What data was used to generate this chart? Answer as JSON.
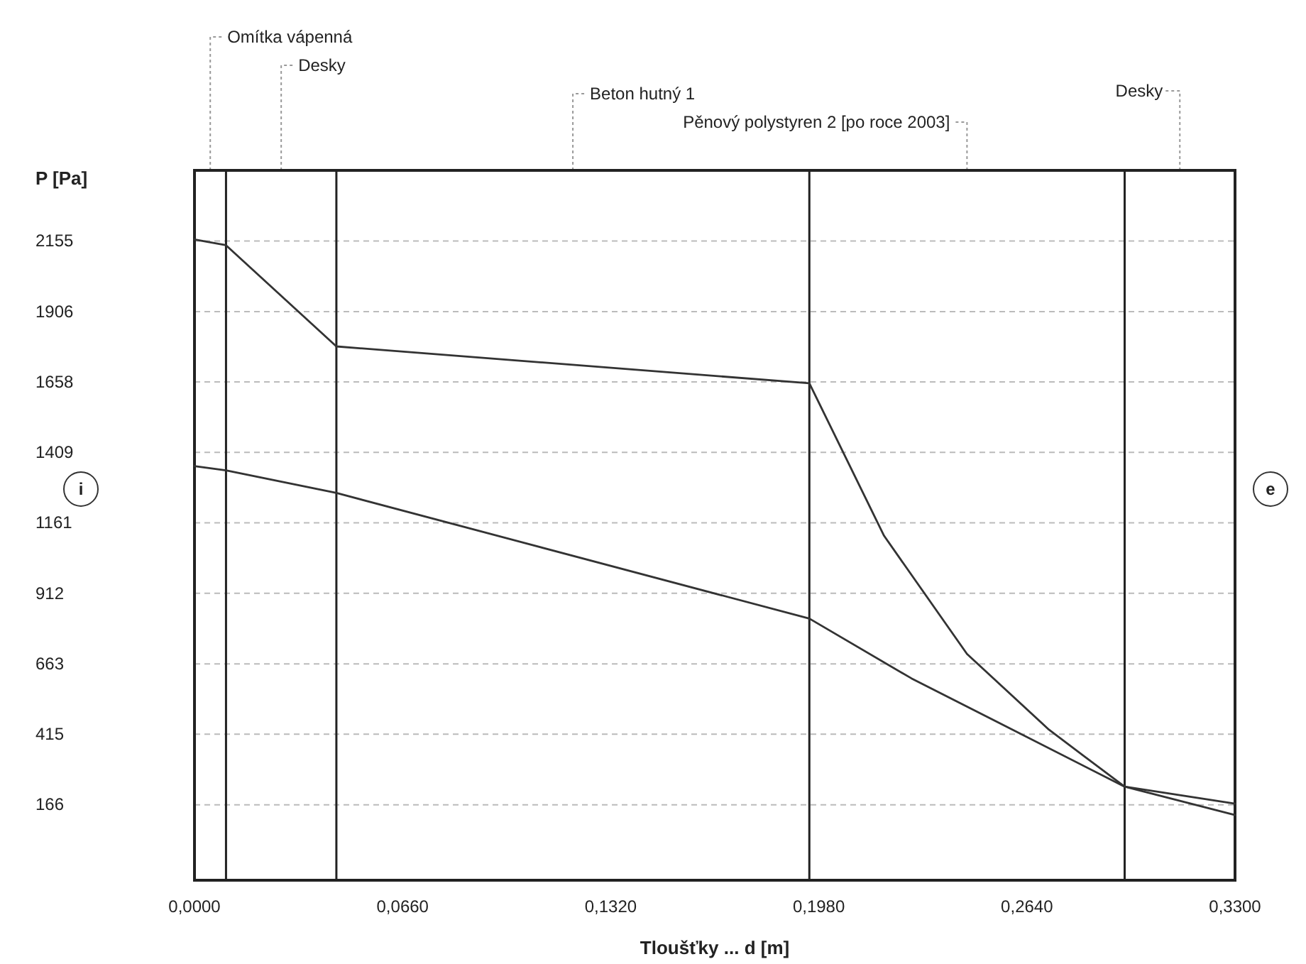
{
  "chart_data": {
    "type": "line",
    "xlabel": "Tloušťky ... d [m]",
    "ylabel": "P [Pa]",
    "xlim": [
      0,
      0.33
    ],
    "ylim": [
      -100,
      2404
    ],
    "xticks": [
      {
        "value": 0,
        "label": "0,0000"
      },
      {
        "value": 0.066,
        "label": "0,0660"
      },
      {
        "value": 0.132,
        "label": "0,1320"
      },
      {
        "value": 0.198,
        "label": "0,1980"
      },
      {
        "value": 0.264,
        "label": "0,2640"
      },
      {
        "value": 0.33,
        "label": "0,3300"
      }
    ],
    "yticks": [
      166,
      415,
      663,
      912,
      1161,
      1409,
      1658,
      1906,
      2155
    ],
    "grid": "y",
    "marker": "none",
    "line_style": "solid",
    "series": [
      {
        "color": "#333333",
        "x": [
          0,
          0.01,
          0.045,
          0.195,
          0.2187,
          0.245,
          0.271,
          0.295,
          0.33
        ],
        "values": [
          2160,
          2140,
          1783,
          1653,
          1115,
          698,
          431,
          230,
          130
        ]
      },
      {
        "color": "#333333",
        "x": [
          0,
          0.01,
          0.045,
          0.195,
          0.2274,
          0.295,
          0.33
        ],
        "values": [
          1361,
          1346,
          1266,
          823,
          612,
          230,
          170
        ]
      }
    ],
    "ref_lines": [
      {
        "axis": "x",
        "value": 0.01
      },
      {
        "axis": "x",
        "value": 0.045
      },
      {
        "axis": "x",
        "value": 0.195
      },
      {
        "axis": "x",
        "value": 0.295
      }
    ],
    "annotations": [
      "Omítka vápenná",
      "Desky",
      "Beton hutný 1",
      "Pěnový polystyren 2 [po roce 2003]",
      "Desky",
      "i",
      "e"
    ]
  }
}
